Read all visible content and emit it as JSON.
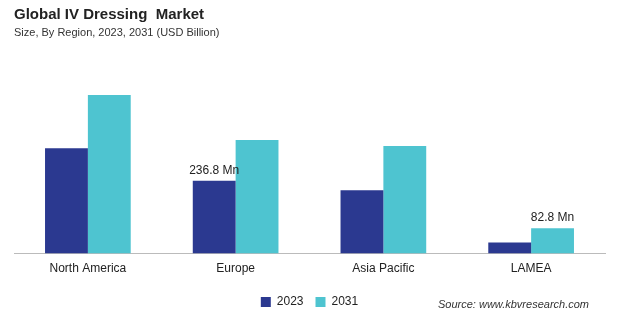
{
  "chart_data": {
    "type": "bar",
    "title": "Global IV Dressing  Market",
    "subtitle": "Size, By Region, 2023, 2031 (USD Billion)",
    "source": "Source: www.kbvresearch.com",
    "categories": [
      "North America",
      "Europe",
      "Asia Pacific",
      "LAMEA"
    ],
    "series": [
      {
        "name": "2023",
        "color": "#2b3990",
        "values": [
          343,
          236.8,
          206,
          36
        ],
        "value_labels": [
          null,
          "236.8 Mn",
          null,
          null
        ]
      },
      {
        "name": "2031",
        "color": "#4ec4d0",
        "values": [
          516,
          370,
          350,
          82.8
        ],
        "value_labels": [
          null,
          null,
          null,
          "82.8 Mn"
        ]
      }
    ],
    "data_labels": true,
    "legend": "bottom",
    "grid": false,
    "tick_labels": "x"
  }
}
